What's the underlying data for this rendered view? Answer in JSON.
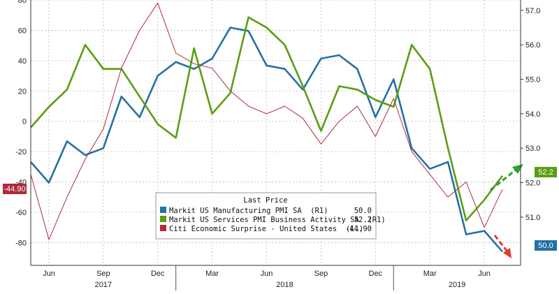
{
  "chart_data": {
    "type": "line",
    "legend": {
      "title": "Last Price",
      "entries": [
        {
          "label": "Markit US Manufacturing PMI SA  (R1)",
          "value": "50.0",
          "color": "#2471a3"
        },
        {
          "label": "Markit US Services PMI Business Activity SA  (R1)",
          "value": "52.2",
          "color": "#5a9e12"
        },
        {
          "label": "Citi Economic Surprise - United States  (L1)",
          "value": "-44.90",
          "color": "#b02a3a"
        }
      ]
    },
    "x_axis": {
      "months": [
        "Jun",
        "Sep",
        "Dec",
        "Mar",
        "Jun",
        "Sep",
        "Dec",
        "Mar",
        "Jun"
      ],
      "years": [
        "2017",
        "2018",
        "2019"
      ],
      "range": [
        "2017-05",
        "2019-08"
      ]
    },
    "y_left": {
      "ticks": [
        "80",
        "60",
        "40",
        "20",
        "0",
        "-20",
        "-40",
        "-60",
        "-80"
      ],
      "range": [
        -95,
        80
      ]
    },
    "y_right": {
      "ticks": [
        "57.0",
        "56.0",
        "55.0",
        "54.0",
        "53.0",
        "52.0",
        "51.0"
      ],
      "range": [
        49.6,
        57.3
      ]
    },
    "badges": {
      "left": "-44.90",
      "right_services": "52.2",
      "right_manufacturing": "50.0"
    },
    "series": [
      {
        "name": "Markit US Manufacturing PMI SA",
        "axis": "right",
        "color": "#2471a3",
        "x": [
          "2017-05",
          "2017-06",
          "2017-07",
          "2017-08",
          "2017-09",
          "2017-10",
          "2017-11",
          "2017-12",
          "2018-01",
          "2018-02",
          "2018-03",
          "2018-04",
          "2018-05",
          "2018-06",
          "2018-07",
          "2018-08",
          "2018-09",
          "2018-10",
          "2018-11",
          "2018-12",
          "2019-01",
          "2019-02",
          "2019-03",
          "2019-04",
          "2019-05",
          "2019-06",
          "2019-07",
          "2019-08"
        ],
        "values": [
          52.6,
          52.0,
          53.2,
          52.8,
          53.0,
          54.5,
          53.9,
          55.1,
          55.5,
          55.3,
          55.6,
          56.5,
          56.4,
          55.4,
          55.3,
          54.7,
          55.6,
          55.7,
          55.3,
          53.9,
          55.0,
          53.0,
          52.4,
          52.6,
          50.5,
          50.6,
          50.0,
          null
        ]
      },
      {
        "name": "Markit US Services PMI Business Activity SA",
        "axis": "right",
        "color": "#5a9e12",
        "x": [
          "2017-05",
          "2017-06",
          "2017-07",
          "2017-08",
          "2017-09",
          "2017-10",
          "2017-11",
          "2017-12",
          "2018-01",
          "2018-02",
          "2018-03",
          "2018-04",
          "2018-05",
          "2018-06",
          "2018-07",
          "2018-08",
          "2018-09",
          "2018-10",
          "2018-11",
          "2018-12",
          "2019-01",
          "2019-02",
          "2019-03",
          "2019-04",
          "2019-05",
          "2019-06",
          "2019-07",
          "2019-08"
        ],
        "values": [
          53.6,
          54.2,
          54.7,
          56.0,
          55.3,
          55.3,
          54.5,
          53.7,
          53.3,
          55.9,
          54.0,
          54.6,
          56.8,
          56.5,
          56.0,
          54.8,
          53.5,
          54.8,
          54.7,
          54.4,
          54.2,
          56.0,
          55.3,
          53.0,
          50.9,
          51.5,
          52.2,
          null
        ]
      },
      {
        "name": "Citi Economic Surprise - United States",
        "axis": "left",
        "color": "#b02a3a",
        "x": [
          "2017-05",
          "2017-06",
          "2017-07",
          "2017-08",
          "2017-09",
          "2017-10",
          "2017-11",
          "2017-12",
          "2018-01",
          "2018-02",
          "2018-03",
          "2018-04",
          "2018-05",
          "2018-06",
          "2018-07",
          "2018-08",
          "2018-09",
          "2018-10",
          "2018-11",
          "2018-12",
          "2019-01",
          "2019-02",
          "2019-03",
          "2019-04",
          "2019-05",
          "2019-06",
          "2019-07",
          "2019-08"
        ],
        "values": [
          -35,
          -78,
          -50,
          -25,
          -5,
          35,
          60,
          78,
          45,
          38,
          35,
          20,
          10,
          5,
          10,
          2,
          -15,
          0,
          10,
          -10,
          15,
          -20,
          -35,
          -50,
          -40,
          -70,
          -44.9,
          null
        ]
      }
    ]
  }
}
